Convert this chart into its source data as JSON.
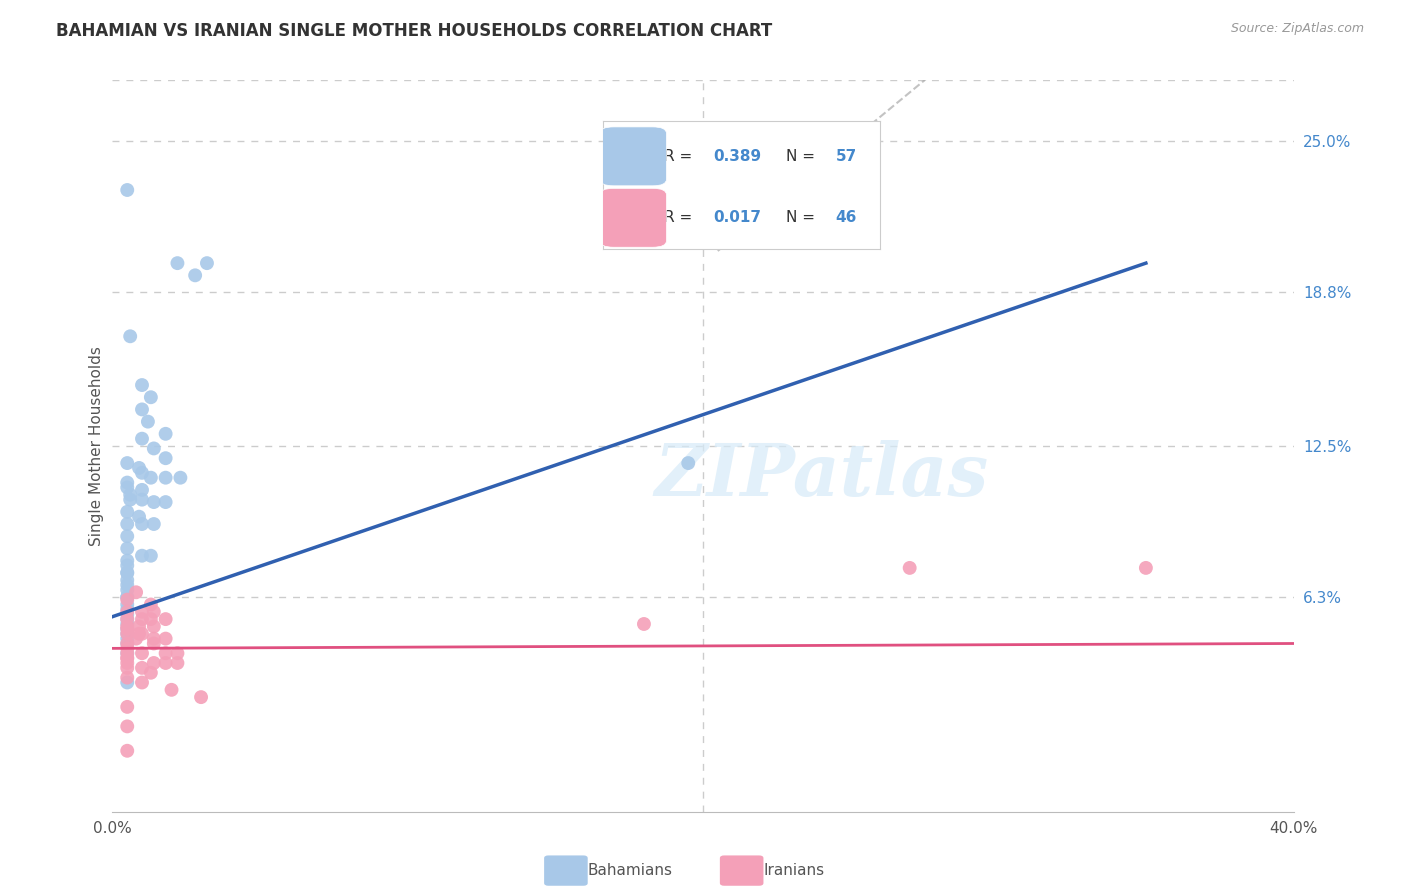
{
  "title": "BAHAMIAN VS IRANIAN SINGLE MOTHER HOUSEHOLDS CORRELATION CHART",
  "source": "Source: ZipAtlas.com",
  "ylabel": "Single Mother Households",
  "xlim": [
    0.0,
    0.4
  ],
  "ylim": [
    -0.025,
    0.275
  ],
  "yticks_right": [
    0.25,
    0.188,
    0.125,
    0.063
  ],
  "ytick_labels_right": [
    "25.0%",
    "18.8%",
    "12.5%",
    "6.3%"
  ],
  "blue_color": "#a8c8e8",
  "pink_color": "#f4a0b8",
  "blue_line_color": "#3060b0",
  "pink_line_color": "#e05080",
  "blue_scatter_x": [
    0.005,
    0.022,
    0.028,
    0.032,
    0.006,
    0.01,
    0.013,
    0.01,
    0.012,
    0.018,
    0.01,
    0.014,
    0.018,
    0.005,
    0.009,
    0.01,
    0.013,
    0.018,
    0.023,
    0.005,
    0.005,
    0.01,
    0.006,
    0.006,
    0.01,
    0.014,
    0.018,
    0.005,
    0.009,
    0.005,
    0.01,
    0.014,
    0.005,
    0.005,
    0.01,
    0.013,
    0.005,
    0.005,
    0.005,
    0.005,
    0.005,
    0.005,
    0.005,
    0.005,
    0.005,
    0.005,
    0.005,
    0.005,
    0.005,
    0.005,
    0.005,
    0.005,
    0.005,
    0.195,
    0.005,
    0.005,
    0.005
  ],
  "blue_scatter_y": [
    0.23,
    0.2,
    0.195,
    0.2,
    0.17,
    0.15,
    0.145,
    0.14,
    0.135,
    0.13,
    0.128,
    0.124,
    0.12,
    0.118,
    0.116,
    0.114,
    0.112,
    0.112,
    0.112,
    0.11,
    0.108,
    0.107,
    0.105,
    0.103,
    0.103,
    0.102,
    0.102,
    0.098,
    0.096,
    0.093,
    0.093,
    0.093,
    0.088,
    0.083,
    0.08,
    0.08,
    0.078,
    0.076,
    0.073,
    0.073,
    0.07,
    0.068,
    0.066,
    0.063,
    0.063,
    0.06,
    0.058,
    0.056,
    0.054,
    0.052,
    0.05,
    0.048,
    0.046,
    0.118,
    0.044,
    0.04,
    0.028
  ],
  "pink_scatter_x": [
    0.005,
    0.008,
    0.013,
    0.005,
    0.01,
    0.014,
    0.01,
    0.013,
    0.018,
    0.005,
    0.009,
    0.014,
    0.005,
    0.009,
    0.01,
    0.014,
    0.018,
    0.005,
    0.005,
    0.005,
    0.005,
    0.005,
    0.005,
    0.005,
    0.01,
    0.013,
    0.005,
    0.005,
    0.008,
    0.014,
    0.01,
    0.018,
    0.022,
    0.014,
    0.018,
    0.022,
    0.18,
    0.005,
    0.01,
    0.02,
    0.03,
    0.27,
    0.35,
    0.005,
    0.005,
    0.005
  ],
  "pink_scatter_y": [
    0.062,
    0.065,
    0.06,
    0.057,
    0.057,
    0.057,
    0.054,
    0.054,
    0.054,
    0.051,
    0.051,
    0.051,
    0.048,
    0.048,
    0.048,
    0.046,
    0.046,
    0.044,
    0.042,
    0.04,
    0.038,
    0.038,
    0.036,
    0.034,
    0.034,
    0.032,
    0.054,
    0.05,
    0.046,
    0.044,
    0.04,
    0.04,
    0.04,
    0.036,
    0.036,
    0.036,
    0.052,
    0.03,
    0.028,
    0.025,
    0.022,
    0.075,
    0.075,
    0.018,
    0.01,
    0.0
  ],
  "blue_regline_x": [
    0.0,
    0.35
  ],
  "blue_regline_y": [
    0.055,
    0.2
  ],
  "pink_regline_x": [
    0.0,
    0.4
  ],
  "pink_regline_y": [
    0.042,
    0.044
  ],
  "dashline_x": [
    0.205,
    0.42
  ],
  "dashline_y": [
    0.205,
    0.42
  ],
  "grid_dashes": [
    4,
    4
  ],
  "watermark_text": "ZIPatlas"
}
